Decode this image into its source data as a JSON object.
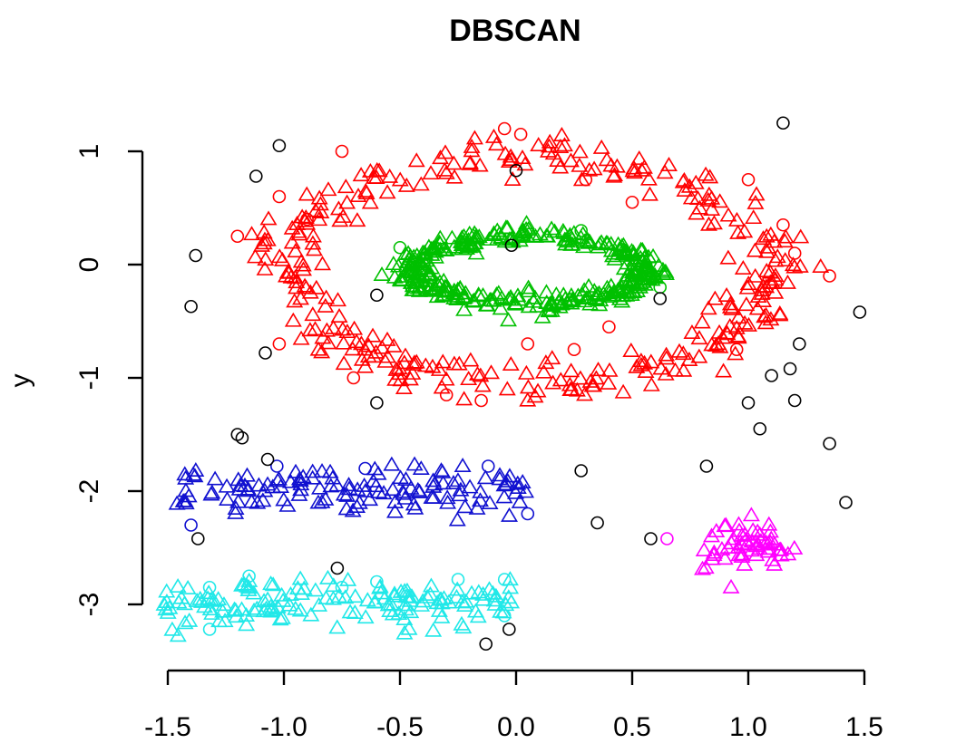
{
  "chart_data": {
    "type": "scatter",
    "title": "DBSCAN",
    "xlabel": "",
    "ylabel": "y",
    "xlim": [
      -1.55,
      1.55
    ],
    "ylim": [
      -3.4,
      1.3
    ],
    "x_ticks": [
      -1.5,
      -1.0,
      -0.5,
      0.0,
      0.5,
      1.0,
      1.5
    ],
    "x_tick_labels": [
      "-1.5",
      "-1.0",
      "-0.5",
      "0.0",
      "0.5",
      "1.0",
      "1.5"
    ],
    "y_ticks": [
      -3,
      -2,
      -1,
      0,
      1
    ],
    "y_tick_labels": [
      "-3",
      "-2",
      "-1",
      "0",
      "1"
    ],
    "grid": false,
    "legend": "none",
    "marker_legend_note": "triangle = core point, circle = border point, black circle = noise",
    "colors": {
      "outer_ring": "#ff0000",
      "inner_ring": "#00c000",
      "blue_band": "#1010d0",
      "cyan_band": "#20e8e8",
      "magenta_cluster": "#ff00ff",
      "noise": "#000000"
    },
    "clusters": [
      {
        "name": "outer_ring",
        "shape": "ring",
        "center": [
          0.05,
          -0.05
        ],
        "radius_x": 1.05,
        "radius_y": 1.0,
        "spread": 0.1,
        "n_core": 330,
        "border_points": [
          [
            -0.75,
            1.0
          ],
          [
            -0.05,
            1.2
          ],
          [
            0.02,
            1.15
          ],
          [
            -1.2,
            0.25
          ],
          [
            -1.02,
            0.6
          ],
          [
            -0.9,
            0.4
          ],
          [
            0.5,
            0.55
          ],
          [
            0.3,
            0.75
          ],
          [
            1.0,
            0.75
          ],
          [
            1.15,
            0.35
          ],
          [
            1.2,
            0.1
          ],
          [
            1.35,
            -0.1
          ],
          [
            -0.15,
            -1.2
          ],
          [
            -0.3,
            -1.15
          ],
          [
            0.05,
            -0.7
          ],
          [
            0.25,
            -0.75
          ],
          [
            0.4,
            -0.55
          ],
          [
            0.95,
            -0.75
          ],
          [
            -0.7,
            -1.0
          ],
          [
            -1.02,
            -0.7
          ]
        ]
      },
      {
        "name": "inner_ring",
        "shape": "ring",
        "center": [
          0.05,
          -0.05
        ],
        "radius_x": 0.5,
        "radius_y": 0.3,
        "spread": 0.05,
        "n_core": 360,
        "border_points": [
          [
            -0.5,
            0.15
          ],
          [
            0.62,
            -0.2
          ],
          [
            -0.45,
            -0.2
          ],
          [
            0.28,
            0.3
          ]
        ]
      },
      {
        "name": "blue_band",
        "shape": "band",
        "x_range": [
          -1.5,
          0.05
        ],
        "y_center": -2.0,
        "spread": 0.1,
        "n_core": 130,
        "border_points": [
          [
            -1.03,
            -1.78
          ],
          [
            -0.65,
            -1.8
          ],
          [
            -0.12,
            -1.78
          ],
          [
            -1.4,
            -2.3
          ],
          [
            0.05,
            -2.2
          ]
        ]
      },
      {
        "name": "cyan_band",
        "shape": "band",
        "x_range": [
          -1.52,
          -0.02
        ],
        "y_center": -3.0,
        "spread": 0.1,
        "n_core": 150,
        "border_points": [
          [
            -1.32,
            -2.85
          ],
          [
            -1.15,
            -2.75
          ],
          [
            -0.75,
            -2.85
          ],
          [
            -0.6,
            -2.8
          ],
          [
            -0.25,
            -2.78
          ],
          [
            -0.05,
            -2.78
          ],
          [
            -1.32,
            -3.22
          ],
          [
            -0.05,
            -3.1
          ]
        ]
      },
      {
        "name": "magenta_cluster",
        "shape": "blob",
        "center": [
          1.0,
          -2.48
        ],
        "spread_x": 0.09,
        "spread_y": 0.1,
        "n_core": 55,
        "border_points": [
          [
            0.65,
            -2.42
          ]
        ]
      },
      {
        "name": "noise",
        "shape": "points",
        "points": [
          [
            1.15,
            1.25
          ],
          [
            -1.02,
            1.05
          ],
          [
            -1.12,
            0.78
          ],
          [
            0.0,
            0.83
          ],
          [
            -1.38,
            0.08
          ],
          [
            -1.4,
            -0.37
          ],
          [
            -0.6,
            -0.27
          ],
          [
            -0.02,
            0.17
          ],
          [
            0.62,
            -0.3
          ],
          [
            1.48,
            -0.42
          ],
          [
            1.22,
            -0.7
          ],
          [
            1.18,
            -0.92
          ],
          [
            1.1,
            -0.98
          ],
          [
            -1.08,
            -0.78
          ],
          [
            1.2,
            -1.2
          ],
          [
            1.0,
            -1.22
          ],
          [
            1.05,
            -1.45
          ],
          [
            -0.6,
            -1.22
          ],
          [
            -1.2,
            -1.5
          ],
          [
            -1.18,
            -1.53
          ],
          [
            1.35,
            -1.58
          ],
          [
            -1.07,
            -1.72
          ],
          [
            0.82,
            -1.78
          ],
          [
            0.28,
            -1.82
          ],
          [
            1.42,
            -2.1
          ],
          [
            0.35,
            -2.28
          ],
          [
            -1.37,
            -2.42
          ],
          [
            0.58,
            -2.42
          ],
          [
            -0.77,
            -2.68
          ],
          [
            -0.03,
            -3.22
          ],
          [
            -0.13,
            -3.35
          ]
        ]
      }
    ]
  }
}
